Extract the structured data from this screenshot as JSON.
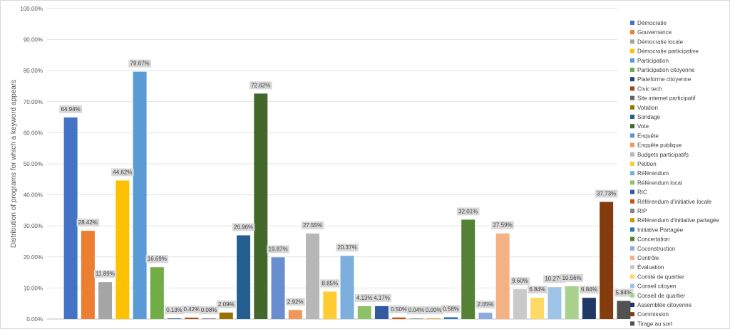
{
  "chart_data": {
    "type": "bar",
    "ylabel": "Distribution of programs for which a keyword appears",
    "ylim": [
      0,
      100
    ],
    "ytick_step": 10,
    "grid": true,
    "legend_position": "right",
    "series": [
      {
        "name": "Démocratie",
        "value": 64.94,
        "label": "64.94%",
        "color": "#4472C4"
      },
      {
        "name": "Gouvernance",
        "value": 28.42,
        "label": "28.42%",
        "color": "#ED7D31"
      },
      {
        "name": "Démocratie locale",
        "value": 11.89,
        "label": "11.89%",
        "color": "#A5A5A5"
      },
      {
        "name": "Démocratie participative",
        "value": 44.62,
        "label": "44.62%",
        "color": "#FFC000"
      },
      {
        "name": "Participation",
        "value": 79.67,
        "label": "79.67%",
        "color": "#5B9BD5"
      },
      {
        "name": "Participation citoyenne",
        "value": 16.69,
        "label": "16.69%",
        "color": "#70AD47"
      },
      {
        "name": "Plateforme citoyenne",
        "value": 0.13,
        "label": "0.13%",
        "color": "#264478"
      },
      {
        "name": "Civic tech",
        "value": 0.42,
        "label": "0.42%",
        "color": "#9E480E"
      },
      {
        "name": "Site internet participatif",
        "value": 0.08,
        "label": "0.08%",
        "color": "#636363"
      },
      {
        "name": "Votation",
        "value": 2.09,
        "label": "2.09%",
        "color": "#997300"
      },
      {
        "name": "Sondage",
        "value": 26.96,
        "label": "26.96%",
        "color": "#255E91"
      },
      {
        "name": "Vote",
        "value": 72.62,
        "label": "72.62%",
        "color": "#43682B"
      },
      {
        "name": "Enquête",
        "value": 19.87,
        "label": "19.87%",
        "color": "#698ED0"
      },
      {
        "name": "Enquête publique",
        "value": 2.92,
        "label": "2.92%",
        "color": "#F1975A"
      },
      {
        "name": "Budgets participatifs",
        "value": 27.55,
        "label": "27.55%",
        "color": "#B7B7B7"
      },
      {
        "name": "Pétition",
        "value": 8.85,
        "label": "8.85%",
        "color": "#FFCD33"
      },
      {
        "name": "Référendum",
        "value": 20.37,
        "label": "20.37%",
        "color": "#7CAFDD"
      },
      {
        "name": "Référendum local",
        "value": 4.13,
        "label": "4.13%",
        "color": "#8CC168"
      },
      {
        "name": "RIC",
        "value": 4.17,
        "label": "4.17%",
        "color": "#335AA1"
      },
      {
        "name": "Référendum d'initiative locale",
        "value": 0.5,
        "label": "0.50%",
        "color": "#C65911"
      },
      {
        "name": "RIP",
        "value": 0.04,
        "label": "0.04%",
        "color": "#848484"
      },
      {
        "name": "Référendum d'initiative partagée",
        "value": 0.0,
        "label": "0.00%",
        "color": "#CC9A00"
      },
      {
        "name": "Initiative Partagée",
        "value": 0.58,
        "label": "0.58%",
        "color": "#2E75B6"
      },
      {
        "name": "Concertation",
        "value": 32.01,
        "label": "32.01%",
        "color": "#548235"
      },
      {
        "name": "Coconstruction",
        "value": 2.05,
        "label": "2.05%",
        "color": "#8FAADC"
      },
      {
        "name": "Contrôle",
        "value": 27.59,
        "label": "27.59%",
        "color": "#F4B183"
      },
      {
        "name": "Évaluation",
        "value": 9.6,
        "label": "9.60%",
        "color": "#C9C9C9"
      },
      {
        "name": "Comité de quartier",
        "value": 6.84,
        "label": "6.84%",
        "color": "#FFD966"
      },
      {
        "name": "Conseil citoyen",
        "value": 10.27,
        "label": "10.27%",
        "color": "#9DC3E6"
      },
      {
        "name": "Conseil de quartier",
        "value": 10.56,
        "label": "10.56%",
        "color": "#A9D18E"
      },
      {
        "name": "Assemblée citoyenne",
        "value": 6.84,
        "label": "6.84%",
        "color": "#203864"
      },
      {
        "name": "Commission",
        "value": 37.73,
        "label": "37.73%",
        "color": "#843C0C"
      },
      {
        "name": "Tirage au sort",
        "value": 5.84,
        "label": "5.84%",
        "color": "#525252"
      }
    ]
  }
}
